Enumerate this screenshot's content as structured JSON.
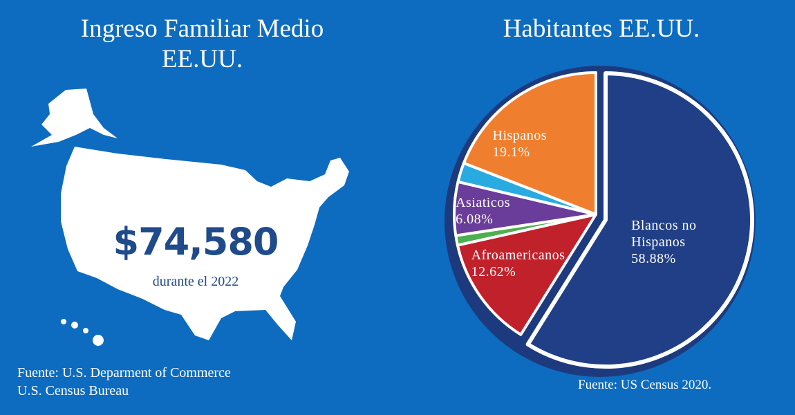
{
  "left": {
    "title_lines": [
      "Ingreso Familiar Medio",
      "EE.UU."
    ],
    "amount": "$74,580",
    "period": "durante el 2022",
    "source_lines": [
      "Fuente: U.S. Deparment of Commerce",
      "U.S. Census Bureau"
    ]
  },
  "chart_data": {
    "type": "pie",
    "title": "Habitantes EE.UU.",
    "categories": [
      "Blancos no Hispanos",
      "Afroamericanos",
      null,
      "Asiaticos",
      null,
      "Hispanos"
    ],
    "values": [
      58.88,
      12.62,
      1.1,
      6.08,
      2.2,
      19.1
    ],
    "value_labels": [
      "58.88%",
      "12.62%",
      null,
      "6.08%",
      null,
      "19.1%"
    ],
    "colors": [
      "#203f86",
      "#c1212b",
      "#4caf50",
      "#6a3d9a",
      "#29abe2",
      "#ef7f2f"
    ],
    "source": "Fuente: US Census 2020."
  }
}
